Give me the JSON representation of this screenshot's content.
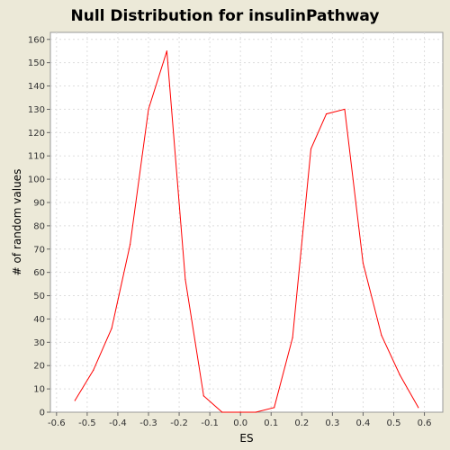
{
  "chart_data": {
    "type": "line",
    "title": "Null Distribution for insulinPathway",
    "xlabel": "ES",
    "ylabel": "# of random values",
    "xlim": [
      -0.62,
      0.66
    ],
    "ylim": [
      0,
      163
    ],
    "x_ticks": [
      -0.6,
      -0.5,
      -0.4,
      -0.3,
      -0.2,
      -0.1,
      0.0,
      0.1,
      0.2,
      0.3,
      0.4,
      0.5,
      0.6
    ],
    "x_tick_labels": [
      "-0.6",
      "-0.5",
      "-0.4",
      "-0.3",
      "-0.2",
      "-0.1",
      "0.0",
      "0.1",
      "0.2",
      "0.3",
      "0.4",
      "0.5",
      "0.6"
    ],
    "y_ticks": [
      0,
      10,
      20,
      30,
      40,
      50,
      60,
      70,
      80,
      90,
      100,
      110,
      120,
      130,
      140,
      150,
      160
    ],
    "y_tick_labels": [
      "0",
      "10",
      "20",
      "30",
      "40",
      "50",
      "60",
      "70",
      "80",
      "90",
      "100",
      "110",
      "120",
      "130",
      "140",
      "150",
      "160"
    ],
    "grid": true,
    "line_color": "#FF0000",
    "plot_background": "#FFFFFF",
    "series": [
      {
        "x": [
          -0.54,
          -0.48,
          -0.42,
          -0.36,
          -0.3,
          -0.24,
          -0.18,
          -0.12,
          -0.06,
          0.0,
          0.05,
          0.11,
          0.17,
          0.23,
          0.28,
          0.34,
          0.4,
          0.46,
          0.52,
          0.58
        ],
        "y": [
          5,
          18,
          36,
          72,
          130,
          155,
          57,
          7,
          0,
          0,
          0,
          2,
          32,
          113,
          128,
          130,
          64,
          33,
          16,
          2
        ]
      }
    ]
  }
}
